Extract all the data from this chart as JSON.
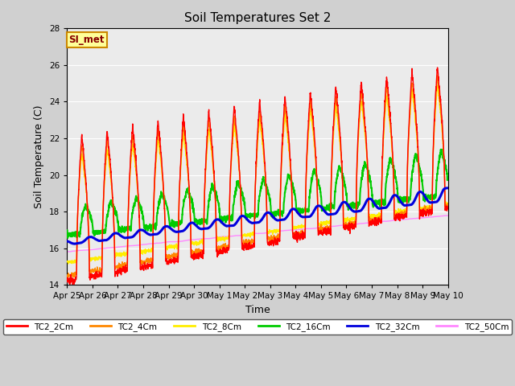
{
  "title": "Soil Temperatures Set 2",
  "xlabel": "Time",
  "ylabel": "Soil Temperature (C)",
  "ylim": [
    14,
    28
  ],
  "yticks": [
    14,
    16,
    18,
    20,
    22,
    24,
    26,
    28
  ],
  "plot_bg_color": "#ebebeb",
  "fig_bg_color": "#d0d0d0",
  "annotation_text": "SI_met",
  "annotation_bg": "#ffff99",
  "annotation_border": "#cc8800",
  "annotation_text_color": "#880000",
  "series_colors": {
    "TC2_2Cm": "#ff0000",
    "TC2_4Cm": "#ff8800",
    "TC2_8Cm": "#ffee00",
    "TC2_16Cm": "#00cc00",
    "TC2_32Cm": "#0000dd",
    "TC2_50Cm": "#ff88ff"
  },
  "xtick_labels": [
    "Apr 25",
    "Apr 26",
    "Apr 27",
    "Apr 28",
    "Apr 29",
    "Apr 30",
    "May 1",
    "May 2",
    "May 3",
    "May 4",
    "May 5",
    "May 6",
    "May 7",
    "May 8",
    "May 9",
    "May 10"
  ],
  "n_days": 15,
  "pts_per_day": 144,
  "linewidths": {
    "TC2_2Cm": 1.0,
    "TC2_4Cm": 1.0,
    "TC2_8Cm": 1.0,
    "TC2_16Cm": 1.5,
    "TC2_32Cm": 2.2,
    "TC2_50Cm": 1.0
  }
}
